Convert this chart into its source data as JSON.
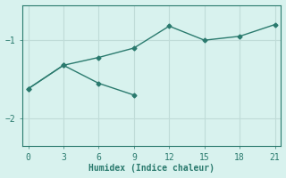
{
  "xlabel": "Humidex (Indice chaleur)",
  "background_color": "#d8f2ee",
  "grid_color": "#c0dcd8",
  "line_color": "#2a7a6e",
  "line1_x": [
    0,
    3,
    6,
    9,
    12,
    15,
    18,
    21
  ],
  "line1_y": [
    -1.62,
    -1.32,
    -1.22,
    -1.1,
    -0.82,
    -1.0,
    -0.95,
    -0.8
  ],
  "line2_x": [
    0,
    3,
    6,
    9
  ],
  "line2_y": [
    -1.62,
    -1.32,
    -1.55,
    -1.7
  ],
  "xlim": [
    -0.5,
    21.5
  ],
  "ylim": [
    -2.35,
    -0.55
  ],
  "xticks": [
    0,
    3,
    6,
    9,
    12,
    15,
    18,
    21
  ],
  "yticks": [
    -2,
    -1
  ],
  "marker": "D",
  "markersize": 2.5,
  "linewidth": 1.0
}
